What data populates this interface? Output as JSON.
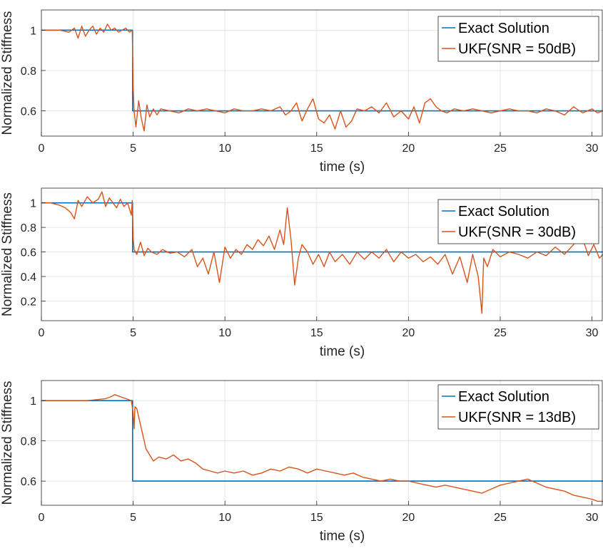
{
  "colors": {
    "exact": "#0072BD",
    "ukf": "#D95319",
    "grid": "#e6e6e6",
    "axis": "#262626"
  },
  "chart_data": [
    {
      "type": "line",
      "xlabel": "time (s)",
      "ylabel": "Normalized Stiffness",
      "xlim": [
        0,
        30.6
      ],
      "ylim": [
        0.475,
        1.1
      ],
      "xticks": [
        0,
        5,
        10,
        15,
        20,
        25,
        30
      ],
      "yticks": [
        0.6,
        0.8,
        1
      ],
      "grid": true,
      "legend_position": "top-right",
      "series": [
        {
          "name": "Exact Solution",
          "color": "#0072BD",
          "x": [
            0,
            4.97,
            4.97,
            30.6
          ],
          "y": [
            1,
            1,
            0.6,
            0.6
          ]
        },
        {
          "name": "UKF(SNR = 50dB)",
          "color": "#D95319",
          "x": [
            0,
            0.5,
            1,
            1.5,
            1.8,
            2.0,
            2.2,
            2.4,
            2.6,
            2.8,
            3.0,
            3.2,
            3.4,
            3.6,
            3.8,
            4.0,
            4.2,
            4.4,
            4.6,
            4.8,
            4.95,
            5.0,
            5.05,
            5.15,
            5.3,
            5.45,
            5.6,
            5.75,
            5.9,
            6.1,
            6.3,
            6.5,
            7,
            7.5,
            8,
            8.5,
            9,
            9.5,
            10,
            10.5,
            11,
            11.5,
            12,
            12.5,
            13,
            13.3,
            13.6,
            13.9,
            14.2,
            14.5,
            14.8,
            15.1,
            15.4,
            15.7,
            16.0,
            16.3,
            16.6,
            16.9,
            17.2,
            17.6,
            18.0,
            18.4,
            18.8,
            19.2,
            19.6,
            20.0,
            20.3,
            20.6,
            20.9,
            21.2,
            21.5,
            21.8,
            22.1,
            22.5,
            23,
            23.5,
            24,
            24.5,
            25,
            25.5,
            26,
            26.5,
            27,
            27.5,
            28,
            28.5,
            29,
            29.5,
            30,
            30.3,
            30.6
          ],
          "y": [
            1,
            1.0,
            1.0,
            0.99,
            1.01,
            0.96,
            1.02,
            0.97,
            1.0,
            1.02,
            0.98,
            1.01,
            0.99,
            1.03,
            1.0,
            1.01,
            0.99,
            1.0,
            1.01,
            0.99,
            1.0,
            0.72,
            0.6,
            0.52,
            0.65,
            0.56,
            0.5,
            0.63,
            0.57,
            0.61,
            0.58,
            0.61,
            0.6,
            0.59,
            0.61,
            0.6,
            0.61,
            0.6,
            0.59,
            0.61,
            0.6,
            0.6,
            0.61,
            0.6,
            0.62,
            0.58,
            0.6,
            0.64,
            0.55,
            0.61,
            0.66,
            0.56,
            0.54,
            0.58,
            0.51,
            0.6,
            0.52,
            0.55,
            0.61,
            0.6,
            0.62,
            0.59,
            0.64,
            0.57,
            0.6,
            0.56,
            0.62,
            0.54,
            0.64,
            0.66,
            0.62,
            0.6,
            0.59,
            0.61,
            0.6,
            0.61,
            0.6,
            0.59,
            0.6,
            0.61,
            0.6,
            0.6,
            0.59,
            0.61,
            0.6,
            0.58,
            0.62,
            0.59,
            0.61,
            0.59,
            0.6
          ]
        }
      ]
    },
    {
      "type": "line",
      "xlabel": "time (s)",
      "ylabel": "Normalized Stiffness",
      "xlim": [
        0,
        30.6
      ],
      "ylim": [
        0.04,
        1.12
      ],
      "xticks": [
        0,
        5,
        10,
        15,
        20,
        25,
        30
      ],
      "yticks": [
        0.2,
        0.4,
        0.6,
        0.8,
        1
      ],
      "grid": true,
      "legend_position": "top-right",
      "series": [
        {
          "name": "Exact Solution",
          "color": "#0072BD",
          "x": [
            0,
            4.97,
            4.97,
            30.6
          ],
          "y": [
            1,
            1,
            0.6,
            0.6
          ]
        },
        {
          "name": "UKF(SNR = 30dB)",
          "color": "#D95319",
          "x": [
            0,
            0.5,
            1,
            1.3,
            1.6,
            1.8,
            2.0,
            2.2,
            2.5,
            2.8,
            3.1,
            3.3,
            3.5,
            3.7,
            3.9,
            4.1,
            4.3,
            4.5,
            4.7,
            4.9,
            4.95,
            5.0,
            5.05,
            5.2,
            5.4,
            5.6,
            5.8,
            6.0,
            6.3,
            6.6,
            7.0,
            7.4,
            7.8,
            8.2,
            8.5,
            8.8,
            9.1,
            9.4,
            9.7,
            10.0,
            10.3,
            10.6,
            10.9,
            11.2,
            11.5,
            11.8,
            12.1,
            12.4,
            12.7,
            13.0,
            13.2,
            13.4,
            13.6,
            13.8,
            14.0,
            14.2,
            14.5,
            14.8,
            15.1,
            15.4,
            15.7,
            16.0,
            16.4,
            16.8,
            17.2,
            17.6,
            18.0,
            18.4,
            18.8,
            19.2,
            19.6,
            20.0,
            20.4,
            20.8,
            21.2,
            21.6,
            22.0,
            22.4,
            22.8,
            23.2,
            23.5,
            23.8,
            24.0,
            24.1,
            24.3,
            24.6,
            25.0,
            25.5,
            26.0,
            26.5,
            27.0,
            27.5,
            28.0,
            28.5,
            29.0,
            29.4,
            29.8,
            30.1,
            30.4,
            30.6
          ],
          "y": [
            1,
            1.0,
            0.98,
            0.96,
            0.92,
            0.87,
            1.02,
            0.97,
            1.05,
            1.0,
            1.03,
            1.09,
            0.97,
            1.04,
            1.0,
            0.96,
            1.03,
            0.97,
            1.0,
            0.9,
            1.02,
            0.72,
            0.62,
            0.58,
            0.68,
            0.57,
            0.63,
            0.6,
            0.58,
            0.62,
            0.59,
            0.6,
            0.56,
            0.62,
            0.48,
            0.55,
            0.42,
            0.6,
            0.35,
            0.64,
            0.55,
            0.62,
            0.58,
            0.66,
            0.62,
            0.7,
            0.65,
            0.73,
            0.62,
            0.78,
            0.66,
            0.96,
            0.7,
            0.33,
            0.55,
            0.66,
            0.6,
            0.5,
            0.58,
            0.48,
            0.6,
            0.52,
            0.58,
            0.5,
            0.6,
            0.54,
            0.6,
            0.55,
            0.62,
            0.52,
            0.6,
            0.55,
            0.58,
            0.52,
            0.56,
            0.5,
            0.58,
            0.42,
            0.56,
            0.35,
            0.58,
            0.4,
            0.1,
            0.55,
            0.48,
            0.62,
            0.56,
            0.6,
            0.58,
            0.55,
            0.6,
            0.57,
            0.64,
            0.58,
            0.66,
            0.75,
            0.57,
            0.66,
            0.55,
            0.58
          ]
        }
      ]
    },
    {
      "type": "line",
      "xlabel": "time (s)",
      "ylabel": "Normalized Stiffness",
      "xlim": [
        0,
        30.6
      ],
      "ylim": [
        0.48,
        1.1
      ],
      "xticks": [
        0,
        5,
        10,
        15,
        20,
        25,
        30
      ],
      "yticks": [
        0.6,
        0.8,
        1
      ],
      "grid": true,
      "legend_position": "top-right",
      "series": [
        {
          "name": "Exact Solution",
          "color": "#0072BD",
          "x": [
            0,
            4.97,
            4.97,
            30.6
          ],
          "y": [
            1,
            1,
            0.6,
            0.6
          ]
        },
        {
          "name": "UKF(SNR = 13dB)",
          "color": "#D95319",
          "x": [
            0,
            1,
            2,
            2.5,
            3,
            3.5,
            3.8,
            4.0,
            4.3,
            4.6,
            4.9,
            5.0,
            5.05,
            5.1,
            5.2,
            5.35,
            5.5,
            5.7,
            5.9,
            6.1,
            6.4,
            6.8,
            7.2,
            7.6,
            8.0,
            8.4,
            8.8,
            9.2,
            9.6,
            10,
            10.5,
            11,
            11.5,
            12,
            12.5,
            13,
            13.5,
            14,
            14.5,
            15,
            15.5,
            16,
            16.5,
            17,
            17.5,
            18,
            18.5,
            19,
            19.5,
            20,
            20.5,
            21,
            21.5,
            22,
            22.5,
            23,
            23.5,
            24,
            24.5,
            25,
            25.5,
            26,
            26.5,
            27,
            27.5,
            28,
            28.5,
            29,
            29.5,
            30,
            30.3,
            30.6
          ],
          "y": [
            1,
            1.0,
            1.0,
            1.0,
            1.005,
            1.01,
            1.02,
            1.03,
            1.02,
            1.01,
            1.0,
            0.94,
            0.86,
            0.97,
            0.96,
            0.9,
            0.84,
            0.76,
            0.73,
            0.7,
            0.72,
            0.71,
            0.73,
            0.7,
            0.71,
            0.69,
            0.66,
            0.65,
            0.64,
            0.65,
            0.64,
            0.65,
            0.63,
            0.64,
            0.66,
            0.65,
            0.67,
            0.66,
            0.64,
            0.66,
            0.65,
            0.64,
            0.63,
            0.64,
            0.62,
            0.61,
            0.6,
            0.61,
            0.6,
            0.6,
            0.59,
            0.58,
            0.57,
            0.58,
            0.57,
            0.56,
            0.55,
            0.54,
            0.56,
            0.58,
            0.59,
            0.6,
            0.61,
            0.59,
            0.57,
            0.56,
            0.55,
            0.53,
            0.52,
            0.51,
            0.5,
            0.5
          ]
        }
      ]
    }
  ]
}
